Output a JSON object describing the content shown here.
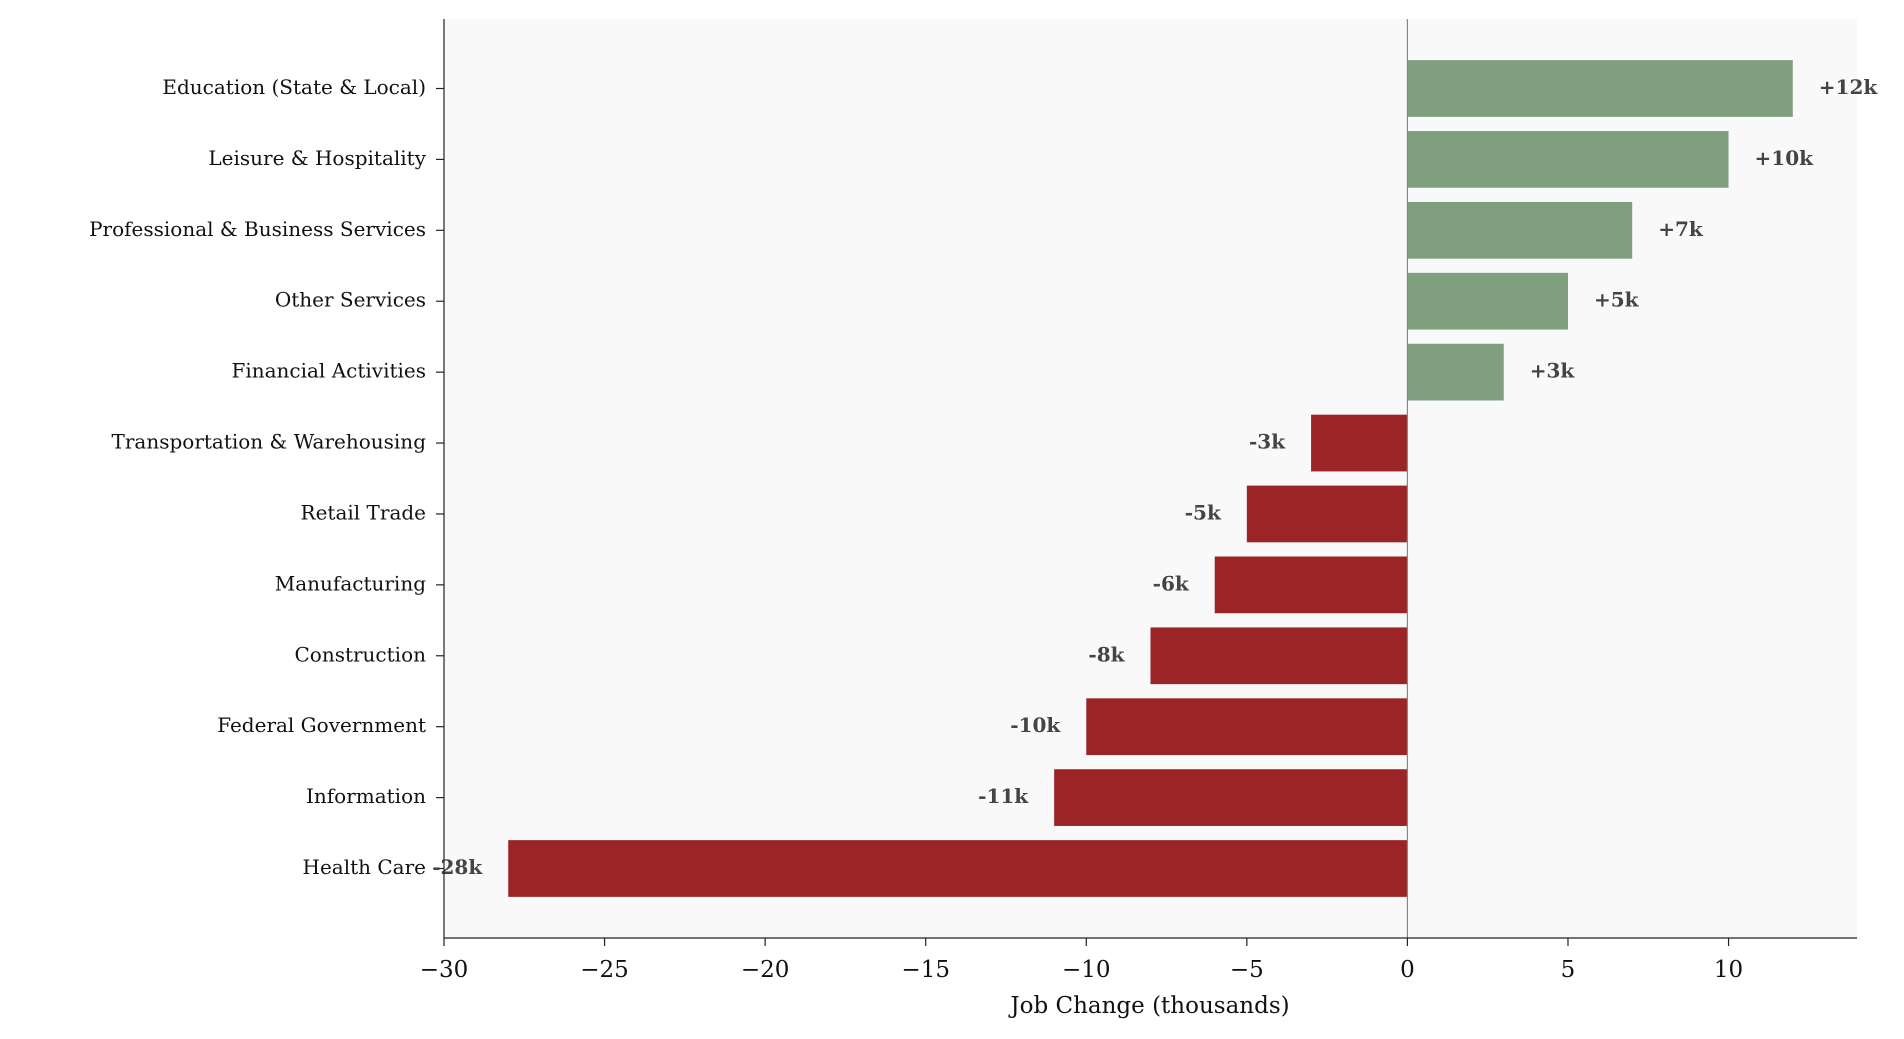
{
  "chart_data": {
    "type": "barh",
    "x_label": "Job Change (thousands)",
    "categories": [
      "Education (State & Local)",
      "Leisure & Hospitality",
      "Professional & Business Services",
      "Other Services",
      "Financial Activities",
      "Transportation & Warehousing",
      "Retail Trade",
      "Manufacturing",
      "Construction",
      "Federal Government",
      "Information",
      "Health Care"
    ],
    "values": [
      12,
      10,
      7,
      5,
      3,
      -3,
      -5,
      -6,
      -8,
      -10,
      -11,
      -28
    ],
    "value_labels": [
      "+12k",
      "+10k",
      "+7k",
      "+5k",
      "+3k",
      "-3k",
      "-5k",
      "-6k",
      "-8k",
      "-10k",
      "-11k",
      "-28k"
    ],
    "colors": [
      "#7f9f7f",
      "#7f9f7f",
      "#7f9f7f",
      "#7f9f7f",
      "#7f9f7f",
      "#9b2426",
      "#9b2426",
      "#9b2426",
      "#9b2426",
      "#9b2426",
      "#9b2426",
      "#9b2426"
    ],
    "xlim": [
      -30,
      14
    ],
    "xticks": [
      {
        "value": -30,
        "label": "−30"
      },
      {
        "value": -25,
        "label": "−25"
      },
      {
        "value": -20,
        "label": "−20"
      },
      {
        "value": -15,
        "label": "−15"
      },
      {
        "value": -10,
        "label": "−10"
      },
      {
        "value": -5,
        "label": "−5"
      },
      0,
      5,
      10
    ],
    "grid": false
  }
}
